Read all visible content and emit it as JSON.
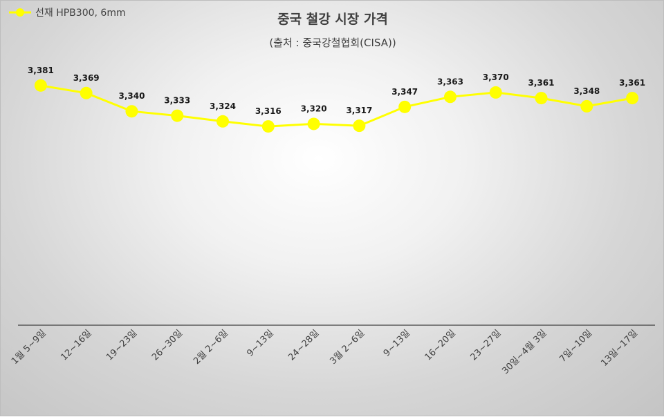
{
  "chart_data": {
    "type": "line",
    "title": "중국 철강 시장 가격",
    "subtitle": "(출처 : 중국강철협회(CISA))",
    "categories": [
      "1월 5~9일",
      "12~16일",
      "19~23일",
      "26~30일",
      "2월 2~6일",
      "9~13일",
      "24~28일",
      "3월 2~6일",
      "9~13일",
      "16~20일",
      "23~27일",
      "30일~4월 3일",
      "7일~10일",
      "13일~17일"
    ],
    "series": [
      {
        "name": "선재 HPB300, 6mm",
        "values": [
          3381,
          3369,
          3340,
          3333,
          3324,
          3316,
          3320,
          3317,
          3347,
          3363,
          3370,
          3361,
          3348,
          3361
        ],
        "labels": [
          "3,381",
          "3,369",
          "3,340",
          "3,333",
          "3,324",
          "3,316",
          "3,320",
          "3,317",
          "3,347",
          "3,363",
          "3,370",
          "3,361",
          "3,348",
          "3,361"
        ],
        "color": "#ffff00"
      }
    ],
    "ylim": [
      3000,
      3450
    ],
    "grid": false,
    "legend_position": "top-left",
    "axis_color": "#404040"
  }
}
